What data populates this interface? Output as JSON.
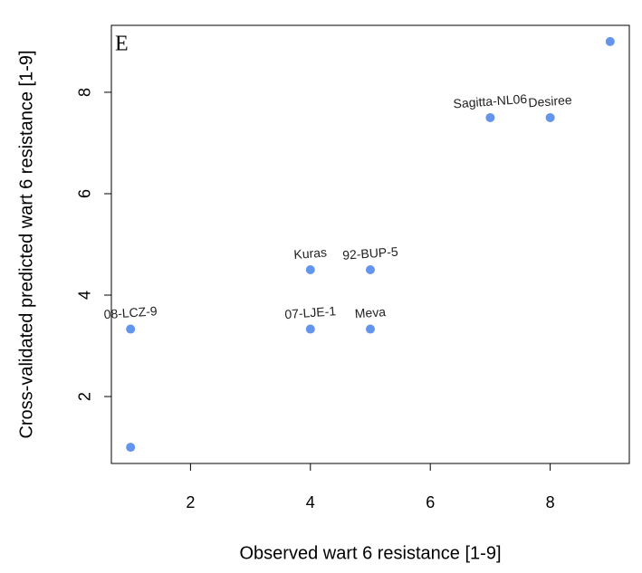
{
  "chart_data": {
    "type": "scatter",
    "annotation": "E",
    "xlabel": "Observed wart 6 resistance [1-9]",
    "ylabel": "Cross-validated predicted wart 6 resistance [1-9]",
    "color": "#6495ed",
    "xlim": [
      0.68,
      9.32
    ],
    "ylim": [
      0.68,
      9.32
    ],
    "xticks": [
      2,
      4,
      6,
      8
    ],
    "yticks": [
      2,
      4,
      6,
      8
    ],
    "labels": [
      "Sagitta-NL06",
      "Desiree",
      "Kuras",
      "92-BUP-5",
      "07-LJE-1",
      "Meva",
      "08-LCZ-9",
      null,
      null
    ],
    "x": [
      7,
      8,
      4,
      5,
      4,
      5,
      1,
      1,
      9
    ],
    "y": [
      7.5,
      7.5,
      4.5,
      4.5,
      3.33,
      3.33,
      3.33,
      1,
      9
    ]
  }
}
